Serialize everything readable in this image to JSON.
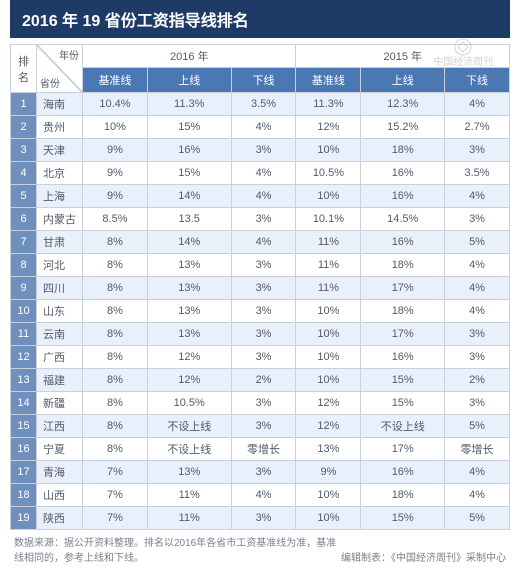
{
  "title": "2016 年 19 省份工资指导线排名",
  "colors": {
    "title_bg": "#1e3a66",
    "subheader_bg": "#4a78b5",
    "rank_bg": "#6f90bd",
    "grid": "#c9d0da",
    "highlight_row": "#e7f0fb"
  },
  "watermark": {
    "l1": "中国经济周刊",
    "l2": "www.ceweekly.cn"
  },
  "header": {
    "rank_label": "排名",
    "diag_year": "年份",
    "diag_prov": "省份",
    "year_2016": "2016 年",
    "year_2015": "2015 年",
    "sub": {
      "base": "基准线",
      "upper": "上线",
      "lower": "下线"
    }
  },
  "rows": [
    {
      "rank": "1",
      "prov": "海南",
      "hl": true,
      "b16": "10.4%",
      "u16": "11.3%",
      "l16": "3.5%",
      "b15": "11.3%",
      "u15": "12.3%",
      "l15": "4%"
    },
    {
      "rank": "2",
      "prov": "贵州",
      "hl": false,
      "b16": "10%",
      "u16": "15%",
      "l16": "4%",
      "b15": "12%",
      "u15": "15.2%",
      "l15": "2.7%"
    },
    {
      "rank": "3",
      "prov": "天津",
      "hl": true,
      "b16": "9%",
      "u16": "16%",
      "l16": "3%",
      "b15": "10%",
      "u15": "18%",
      "l15": "3%"
    },
    {
      "rank": "4",
      "prov": "北京",
      "hl": false,
      "b16": "9%",
      "u16": "15%",
      "l16": "4%",
      "b15": "10.5%",
      "u15": "16%",
      "l15": "3.5%"
    },
    {
      "rank": "5",
      "prov": "上海",
      "hl": true,
      "b16": "9%",
      "u16": "14%",
      "l16": "4%",
      "b15": "10%",
      "u15": "16%",
      "l15": "4%"
    },
    {
      "rank": "6",
      "prov": "内蒙古",
      "hl": false,
      "b16": "8.5%",
      "u16": "13.5",
      "l16": "3%",
      "b15": "10.1%",
      "u15": "14.5%",
      "l15": "3%"
    },
    {
      "rank": "7",
      "prov": "甘肃",
      "hl": true,
      "b16": "8%",
      "u16": "14%",
      "l16": "4%",
      "b15": "11%",
      "u15": "16%",
      "l15": "5%"
    },
    {
      "rank": "8",
      "prov": "河北",
      "hl": false,
      "b16": "8%",
      "u16": "13%",
      "l16": "3%",
      "b15": "11%",
      "u15": "18%",
      "l15": "4%"
    },
    {
      "rank": "9",
      "prov": "四川",
      "hl": true,
      "b16": "8%",
      "u16": "13%",
      "l16": "3%",
      "b15": "11%",
      "u15": "17%",
      "l15": "4%"
    },
    {
      "rank": "10",
      "prov": "山东",
      "hl": false,
      "b16": "8%",
      "u16": "13%",
      "l16": "3%",
      "b15": "10%",
      "u15": "18%",
      "l15": "4%"
    },
    {
      "rank": "11",
      "prov": "云南",
      "hl": true,
      "b16": "8%",
      "u16": "13%",
      "l16": "3%",
      "b15": "10%",
      "u15": "17%",
      "l15": "3%"
    },
    {
      "rank": "12",
      "prov": "广西",
      "hl": false,
      "b16": "8%",
      "u16": "12%",
      "l16": "3%",
      "b15": "10%",
      "u15": "16%",
      "l15": "3%"
    },
    {
      "rank": "13",
      "prov": "福建",
      "hl": true,
      "b16": "8%",
      "u16": "12%",
      "l16": "2%",
      "b15": "10%",
      "u15": "15%",
      "l15": "2%"
    },
    {
      "rank": "14",
      "prov": "新疆",
      "hl": false,
      "b16": "8%",
      "u16": "10.5%",
      "l16": "3%",
      "b15": "12%",
      "u15": "15%",
      "l15": "3%"
    },
    {
      "rank": "15",
      "prov": "江西",
      "hl": true,
      "b16": "8%",
      "u16": "不设上线",
      "l16": "3%",
      "b15": "12%",
      "u15": "不设上线",
      "l15": "5%"
    },
    {
      "rank": "16",
      "prov": "宁夏",
      "hl": false,
      "b16": "8%",
      "u16": "不设上线",
      "l16": "零增长",
      "b15": "13%",
      "u15": "17%",
      "l15": "零增长"
    },
    {
      "rank": "17",
      "prov": "青海",
      "hl": true,
      "b16": "7%",
      "u16": "13%",
      "l16": "3%",
      "b15": "9%",
      "u15": "16%",
      "l15": "4%"
    },
    {
      "rank": "18",
      "prov": "山西",
      "hl": false,
      "b16": "7%",
      "u16": "11%",
      "l16": "4%",
      "b15": "10%",
      "u15": "18%",
      "l15": "4%"
    },
    {
      "rank": "19",
      "prov": "陕西",
      "hl": true,
      "b16": "7%",
      "u16": "11%",
      "l16": "3%",
      "b15": "10%",
      "u15": "15%",
      "l15": "5%"
    }
  ],
  "footer": {
    "l1": "数据来源：据公开资料整理。排名以2016年各省市工资基准线为准，基准",
    "l2": "线相同的，参考上线和下线。",
    "l3": "编辑制表：《中国经济周刊》采制中心"
  }
}
